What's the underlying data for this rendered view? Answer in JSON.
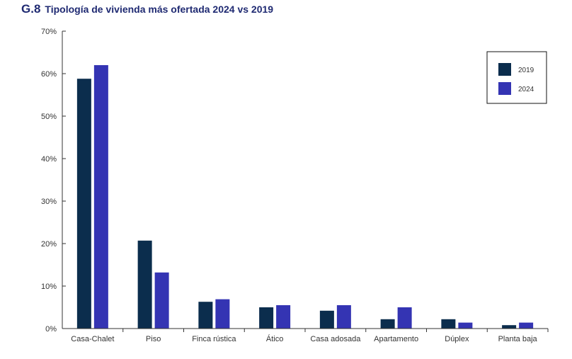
{
  "header": {
    "code": "G.8",
    "title": "Tipología de vivienda más ofertada 2024 vs 2019"
  },
  "chart_data": {
    "type": "bar",
    "title": "Tipología de vivienda más ofertada 2024 vs 2019",
    "xlabel": "",
    "ylabel": "",
    "ylim": [
      0,
      70
    ],
    "ytick_values": [
      0,
      10,
      20,
      30,
      40,
      50,
      60,
      70
    ],
    "ytick_labels": [
      "0%",
      "10%",
      "20%",
      "30%",
      "40%",
      "50%",
      "60%",
      "70%"
    ],
    "categories": [
      "Casa-Chalet",
      "Piso",
      "Finca rústica",
      "Ático",
      "Casa adosada",
      "Apartamento",
      "Dúplex",
      "Planta baja"
    ],
    "series": [
      {
        "name": "2019",
        "color": "#0b2d4d",
        "values": [
          58.8,
          20.7,
          6.3,
          5.0,
          4.2,
          2.2,
          2.2,
          0.8
        ]
      },
      {
        "name": "2024",
        "color": "#3434b3",
        "values": [
          62.0,
          13.2,
          6.9,
          5.5,
          5.5,
          5.0,
          1.4,
          1.4
        ]
      }
    ],
    "grid": false,
    "legend_position": "top-right"
  }
}
